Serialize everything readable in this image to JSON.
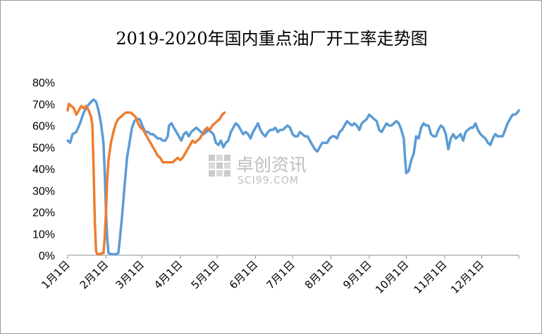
{
  "chart_data": {
    "type": "line",
    "title": "2019-2020年国内重点油厂开工率走势图",
    "xlabel": "",
    "ylabel": "",
    "ylim": [
      0,
      80
    ],
    "yticks": [
      "0%",
      "10%",
      "20%",
      "30%",
      "40%",
      "50%",
      "60%",
      "70%",
      "80%"
    ],
    "x_day_range": [
      1,
      366
    ],
    "x_ticks": [
      {
        "label": "1月1日",
        "day": 1
      },
      {
        "label": "2月1日",
        "day": 32
      },
      {
        "label": "3月1日",
        "day": 61
      },
      {
        "label": "4月1日",
        "day": 92
      },
      {
        "label": "5月1日",
        "day": 122
      },
      {
        "label": "6月1日",
        "day": 153
      },
      {
        "label": "7月1日",
        "day": 183
      },
      {
        "label": "8月1日",
        "day": 214
      },
      {
        "label": "9月1日",
        "day": 245
      },
      {
        "label": "10月1日",
        "day": 275
      },
      {
        "label": "11月1日",
        "day": 306
      },
      {
        "label": "12月1日",
        "day": 336
      }
    ],
    "grid": false,
    "legend": "none",
    "series": [
      {
        "color": "#5b9bd5",
        "points": [
          [
            1,
            53
          ],
          [
            3,
            52
          ],
          [
            5,
            56
          ],
          [
            8,
            57
          ],
          [
            11,
            61
          ],
          [
            14,
            66
          ],
          [
            17,
            69
          ],
          [
            20,
            71
          ],
          [
            22,
            72
          ],
          [
            24,
            71
          ],
          [
            26,
            67
          ],
          [
            28,
            61
          ],
          [
            30,
            52
          ],
          [
            31,
            38
          ],
          [
            32,
            20
          ],
          [
            33,
            8
          ],
          [
            34,
            1
          ],
          [
            37,
            0.5
          ],
          [
            40,
            0.5
          ],
          [
            42,
            1
          ],
          [
            43,
            6
          ],
          [
            45,
            18
          ],
          [
            47,
            32
          ],
          [
            49,
            45
          ],
          [
            51,
            52
          ],
          [
            53,
            59
          ],
          [
            55,
            62
          ],
          [
            57,
            63
          ],
          [
            59,
            63
          ],
          [
            60,
            62
          ],
          [
            62,
            59
          ],
          [
            64,
            57
          ],
          [
            66,
            57
          ],
          [
            68,
            56
          ],
          [
            70,
            56
          ],
          [
            72,
            55
          ],
          [
            74,
            54
          ],
          [
            76,
            54
          ],
          [
            78,
            53
          ],
          [
            80,
            53
          ],
          [
            82,
            55
          ],
          [
            83,
            60
          ],
          [
            85,
            61
          ],
          [
            87,
            59
          ],
          [
            89,
            57
          ],
          [
            91,
            55
          ],
          [
            93,
            53
          ],
          [
            95,
            56
          ],
          [
            97,
            57
          ],
          [
            99,
            55
          ],
          [
            101,
            57
          ],
          [
            103,
            58
          ],
          [
            105,
            59
          ],
          [
            107,
            58
          ],
          [
            109,
            57
          ],
          [
            111,
            56
          ],
          [
            113,
            57
          ],
          [
            115,
            58
          ],
          [
            117,
            57
          ],
          [
            119,
            56
          ],
          [
            121,
            52
          ],
          [
            123,
            51
          ],
          [
            125,
            53
          ],
          [
            127,
            50
          ],
          [
            129,
            52
          ],
          [
            131,
            53
          ],
          [
            133,
            57
          ],
          [
            135,
            59
          ],
          [
            137,
            61
          ],
          [
            139,
            60
          ],
          [
            141,
            58
          ],
          [
            143,
            56
          ],
          [
            145,
            57
          ],
          [
            147,
            56
          ],
          [
            149,
            54
          ],
          [
            151,
            57
          ],
          [
            153,
            59
          ],
          [
            155,
            61
          ],
          [
            157,
            58
          ],
          [
            159,
            56
          ],
          [
            161,
            55
          ],
          [
            163,
            57
          ],
          [
            165,
            58
          ],
          [
            167,
            58
          ],
          [
            169,
            59
          ],
          [
            171,
            57
          ],
          [
            173,
            58
          ],
          [
            175,
            58
          ],
          [
            177,
            59
          ],
          [
            179,
            60
          ],
          [
            181,
            59
          ],
          [
            183,
            56
          ],
          [
            185,
            55
          ],
          [
            187,
            55
          ],
          [
            189,
            57
          ],
          [
            191,
            56
          ],
          [
            193,
            55
          ],
          [
            195,
            55
          ],
          [
            197,
            53
          ],
          [
            199,
            51
          ],
          [
            201,
            49
          ],
          [
            203,
            48
          ],
          [
            205,
            50
          ],
          [
            207,
            52
          ],
          [
            209,
            52
          ],
          [
            211,
            52
          ],
          [
            213,
            54
          ],
          [
            215,
            55
          ],
          [
            217,
            55
          ],
          [
            219,
            54
          ],
          [
            221,
            57
          ],
          [
            223,
            58
          ],
          [
            225,
            60
          ],
          [
            227,
            62
          ],
          [
            229,
            61
          ],
          [
            231,
            60
          ],
          [
            233,
            61
          ],
          [
            235,
            60
          ],
          [
            237,
            58
          ],
          [
            239,
            61
          ],
          [
            241,
            62
          ],
          [
            243,
            63
          ],
          [
            245,
            65
          ],
          [
            247,
            64
          ],
          [
            249,
            63
          ],
          [
            251,
            62
          ],
          [
            253,
            58
          ],
          [
            255,
            57
          ],
          [
            257,
            59
          ],
          [
            259,
            61
          ],
          [
            261,
            60
          ],
          [
            263,
            60
          ],
          [
            265,
            61
          ],
          [
            267,
            62
          ],
          [
            269,
            61
          ],
          [
            271,
            58
          ],
          [
            273,
            54
          ],
          [
            274,
            45
          ],
          [
            275,
            38
          ],
          [
            277,
            39
          ],
          [
            279,
            44
          ],
          [
            281,
            47
          ],
          [
            283,
            55
          ],
          [
            285,
            54
          ],
          [
            287,
            59
          ],
          [
            289,
            61
          ],
          [
            291,
            60
          ],
          [
            293,
            60
          ],
          [
            295,
            56
          ],
          [
            297,
            55
          ],
          [
            299,
            55
          ],
          [
            301,
            58
          ],
          [
            303,
            60
          ],
          [
            305,
            59
          ],
          [
            307,
            56
          ],
          [
            309,
            49
          ],
          [
            311,
            54
          ],
          [
            313,
            56
          ],
          [
            315,
            54
          ],
          [
            317,
            55
          ],
          [
            319,
            56
          ],
          [
            321,
            53
          ],
          [
            323,
            57
          ],
          [
            325,
            58
          ],
          [
            327,
            59
          ],
          [
            329,
            59
          ],
          [
            331,
            61
          ],
          [
            333,
            58
          ],
          [
            335,
            56
          ],
          [
            337,
            55
          ],
          [
            339,
            54
          ],
          [
            341,
            52
          ],
          [
            343,
            51
          ],
          [
            345,
            54
          ],
          [
            347,
            56
          ],
          [
            349,
            55
          ],
          [
            351,
            55
          ],
          [
            353,
            55
          ],
          [
            355,
            58
          ],
          [
            357,
            61
          ],
          [
            359,
            63
          ],
          [
            361,
            65
          ],
          [
            363,
            65
          ],
          [
            365,
            66
          ],
          [
            366,
            67
          ]
        ]
      },
      {
        "color": "#ed7d31",
        "points": [
          [
            1,
            67
          ],
          [
            2,
            70
          ],
          [
            4,
            69
          ],
          [
            6,
            68
          ],
          [
            8,
            65
          ],
          [
            10,
            67
          ],
          [
            12,
            69
          ],
          [
            14,
            68
          ],
          [
            16,
            69
          ],
          [
            18,
            67
          ],
          [
            20,
            64
          ],
          [
            21,
            60
          ],
          [
            22,
            40
          ],
          [
            23,
            15
          ],
          [
            24,
            2
          ],
          [
            25,
            0.5
          ],
          [
            27,
            0.5
          ],
          [
            29,
            1
          ],
          [
            30,
            1
          ],
          [
            31,
            8
          ],
          [
            32,
            20
          ],
          [
            33,
            35
          ],
          [
            34,
            44
          ],
          [
            36,
            52
          ],
          [
            38,
            57
          ],
          [
            40,
            61
          ],
          [
            42,
            63
          ],
          [
            44,
            64
          ],
          [
            46,
            65
          ],
          [
            48,
            66
          ],
          [
            50,
            66
          ],
          [
            52,
            66
          ],
          [
            54,
            65
          ],
          [
            56,
            64
          ],
          [
            58,
            61
          ],
          [
            60,
            59
          ],
          [
            62,
            58
          ],
          [
            64,
            56
          ],
          [
            66,
            54
          ],
          [
            68,
            52
          ],
          [
            70,
            50
          ],
          [
            72,
            48
          ],
          [
            74,
            46
          ],
          [
            76,
            45
          ],
          [
            78,
            43
          ],
          [
            80,
            43
          ],
          [
            82,
            43
          ],
          [
            84,
            43
          ],
          [
            86,
            43
          ],
          [
            88,
            44
          ],
          [
            90,
            45
          ],
          [
            92,
            44
          ],
          [
            94,
            45
          ],
          [
            96,
            47
          ],
          [
            98,
            49
          ],
          [
            100,
            51
          ],
          [
            102,
            53
          ],
          [
            104,
            52
          ],
          [
            106,
            53
          ],
          [
            108,
            54
          ],
          [
            110,
            56
          ],
          [
            112,
            58
          ],
          [
            114,
            59
          ],
          [
            116,
            58
          ],
          [
            118,
            60
          ],
          [
            120,
            61
          ],
          [
            122,
            62
          ],
          [
            124,
            63
          ],
          [
            126,
            65
          ],
          [
            128,
            66
          ]
        ]
      }
    ],
    "watermark": {
      "cn": "卓创资讯",
      "en": "SCI99.COM"
    }
  }
}
